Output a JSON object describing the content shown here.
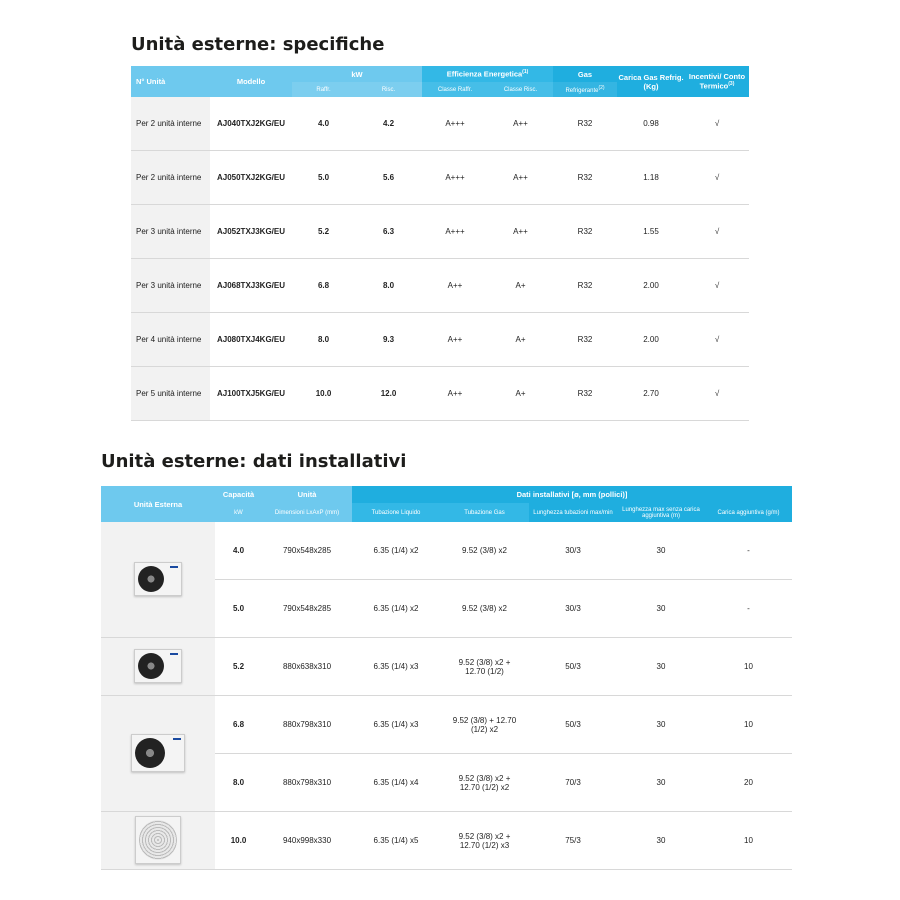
{
  "table1": {
    "title": "Unità esterne: specifiche",
    "headers": {
      "n_unita": "N° Unità",
      "modello": "Modello",
      "kw": "kW",
      "raffr": "Raffr.",
      "risc": "Risc.",
      "efficienza": "Efficienza Energetica",
      "efficienza_sup": "(1)",
      "classe_raffr": "Classe Raffr.",
      "classe_risc": "Classe Risc.",
      "gas": "Gas",
      "refrigerante": "Refrigerante",
      "refrigerante_sup": "(2)",
      "carica_gas": "Carica Gas Refrig. (Kg)",
      "incentivi": "Incentivi/ Conto Termico",
      "incentivi_sup": "(3)"
    },
    "rows": [
      {
        "unita": "Per 2 unità interne",
        "modello": "AJ040TXJ2KG/EU",
        "raffr": "4.0",
        "risc": "4.2",
        "classe_raffr": "A+++",
        "classe_risc": "A++",
        "gas": "R32",
        "carica": "0.98",
        "incentivi": "√"
      },
      {
        "unita": "Per 2 unità interne",
        "modello": "AJ050TXJ2KG/EU",
        "raffr": "5.0",
        "risc": "5.6",
        "classe_raffr": "A+++",
        "classe_risc": "A++",
        "gas": "R32",
        "carica": "1.18",
        "incentivi": "√"
      },
      {
        "unita": "Per 3 unità interne",
        "modello": "AJ052TXJ3KG/EU",
        "raffr": "5.2",
        "risc": "6.3",
        "classe_raffr": "A+++",
        "classe_risc": "A++",
        "gas": "R32",
        "carica": "1.55",
        "incentivi": "√"
      },
      {
        "unita": "Per 3 unità interne",
        "modello": "AJ068TXJ3KG/EU",
        "raffr": "6.8",
        "risc": "8.0",
        "classe_raffr": "A++",
        "classe_risc": "A+",
        "gas": "R32",
        "carica": "2.00",
        "incentivi": "√"
      },
      {
        "unita": "Per 4 unità interne",
        "modello": "AJ080TXJ4KG/EU",
        "raffr": "8.0",
        "risc": "9.3",
        "classe_raffr": "A++",
        "classe_risc": "A+",
        "gas": "R32",
        "carica": "2.00",
        "incentivi": "√"
      },
      {
        "unita": "Per 5 unità interne",
        "modello": "AJ100TXJ5KG/EU",
        "raffr": "10.0",
        "risc": "12.0",
        "classe_raffr": "A++",
        "classe_risc": "A+",
        "gas": "R32",
        "carica": "2.70",
        "incentivi": "√"
      }
    ]
  },
  "table2": {
    "title": "Unità esterne: dati installativi",
    "headers": {
      "unita_esterna": "Unità Esterna",
      "capacita": "Capacità",
      "kw": "kW",
      "unita": "Unità",
      "dimensioni": "Dimensioni LxAxP (mm)",
      "dati": "Dati installativi [ø, mm (pollici)]",
      "liquido": "Tubazione Liquido",
      "gas": "Tubazione Gas",
      "lunghezza": "Lunghezza tubazioni max/min",
      "lunghezza_max": "Lunghezza max senza carica aggiuntiva (m)",
      "carica": "Carica aggiuntiva (g/m)"
    },
    "rows": [
      {
        "kw": "4.0",
        "dim": "790x548x285",
        "liquido": "6.35 (1/4) x2",
        "gas": "9.52 (3/8) x2",
        "lung": "30/3",
        "lmax": "30",
        "carica": "-"
      },
      {
        "kw": "5.0",
        "dim": "790x548x285",
        "liquido": "6.35 (1/4) x2",
        "gas": "9.52 (3/8) x2",
        "lung": "30/3",
        "lmax": "30",
        "carica": "-"
      },
      {
        "kw": "5.2",
        "dim": "880x638x310",
        "liquido": "6.35 (1/4) x3",
        "gas": "9.52 (3/8) x2 + 12.70 (1/2)",
        "lung": "50/3",
        "lmax": "30",
        "carica": "10"
      },
      {
        "kw": "6.8",
        "dim": "880x798x310",
        "liquido": "6.35 (1/4) x3",
        "gas": "9.52 (3/8) + 12.70 (1/2) x2",
        "lung": "50/3",
        "lmax": "30",
        "carica": "10"
      },
      {
        "kw": "8.0",
        "dim": "880x798x310",
        "liquido": "6.35 (1/4) x4",
        "gas": "9.52 (3/8) x2 + 12.70 (1/2) x2",
        "lung": "70/3",
        "lmax": "30",
        "carica": "20"
      },
      {
        "kw": "10.0",
        "dim": "940x998x330",
        "liquido": "6.35 (1/4) x5",
        "gas": "9.52 (3/8) x2 + 12.70 (1/2) x3",
        "lung": "75/3",
        "lmax": "30",
        "carica": "10"
      }
    ]
  }
}
